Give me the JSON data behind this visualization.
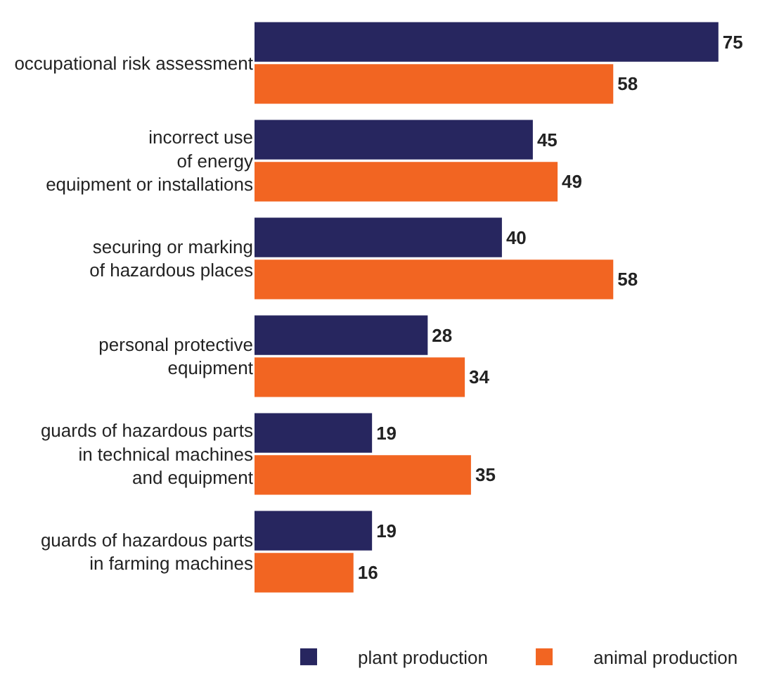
{
  "chart_data": {
    "type": "bar",
    "orientation": "horizontal",
    "data_labels": true,
    "legend": "bottom",
    "grid": false,
    "categories": [
      "occupational risk assessment",
      "incorrect use\nof energy\nequipment or installations",
      "securing or marking\nof hazardous places",
      "personal protective\nequipment",
      "guards of hazardous parts\nin technical machines\nand equipment",
      "guards of hazardous parts\nin farming machines"
    ],
    "series": [
      {
        "name": "plant production",
        "color": "#27265f",
        "values": [
          75,
          45,
          40,
          28,
          19,
          19
        ]
      },
      {
        "name": "animal production",
        "color": "#f26522",
        "values": [
          58,
          49,
          58,
          34,
          35,
          16
        ]
      }
    ]
  }
}
